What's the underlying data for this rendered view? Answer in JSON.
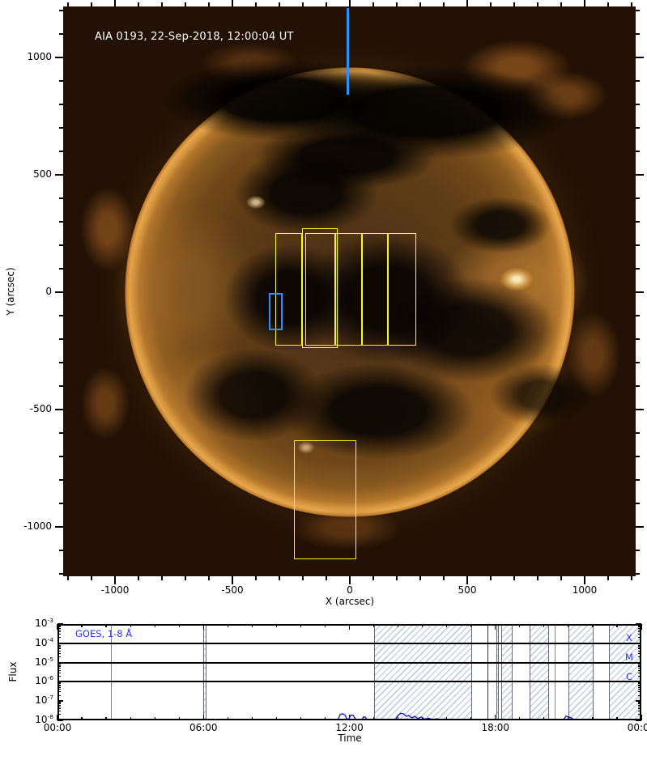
{
  "colors": {
    "fov_yellow": "#ffff00",
    "marker_blue": "#2f8fff",
    "goes_curve": "#2222bb",
    "goes_text_blue": "#2b36e0",
    "hatch_blue": "#7898cd",
    "event_line_gray": "#888888",
    "event_line_dark": "#333333"
  },
  "chart_data": [
    {
      "type": "heatmap",
      "title": "AIA 0193, 22-Sep-2018, 12:00:04 UT",
      "xlabel": "X (arcsec)",
      "ylabel": "Y (arcsec)",
      "xlim": [
        -1220.7,
        1217.2
      ],
      "ylim": [
        -1210.3,
        1217.2
      ],
      "xticks": [
        {
          "v": -1000,
          "label": "-1000"
        },
        {
          "v": -500,
          "label": "-500"
        },
        {
          "v": 0,
          "label": "0"
        },
        {
          "v": 500,
          "label": "500"
        },
        {
          "v": 1000,
          "label": "1000"
        }
      ],
      "yticks": [
        {
          "v": 1000,
          "label": "1000"
        },
        {
          "v": 500,
          "label": "500"
        },
        {
          "v": 0,
          "label": "0"
        },
        {
          "v": -500,
          "label": "-500"
        },
        {
          "v": -1000,
          "label": "-1000"
        }
      ],
      "minor_step": 100,
      "grid": false,
      "sun_radius_arcsec": 960,
      "fov_boxes_yellow_arcsec": [
        {
          "x1": -317,
          "x2": -203,
          "y1": -228,
          "y2": 252
        },
        {
          "x1": -203,
          "x2": -52,
          "y1": -238,
          "y2": 272
        },
        {
          "x1": -190,
          "x2": -62,
          "y1": -228,
          "y2": 252
        },
        {
          "x1": -62,
          "x2": 52,
          "y1": -228,
          "y2": 252
        },
        {
          "x1": 52,
          "x2": 162,
          "y1": -228,
          "y2": 252
        },
        {
          "x1": 162,
          "x2": 283,
          "y1": -228,
          "y2": 252
        },
        {
          "x1": -238,
          "x2": 28,
          "y1": -1138,
          "y2": -631
        }
      ],
      "fov_box_blue_arcsec": {
        "x1": -345,
        "x2": -286,
        "y1": -162,
        "y2": -3
      },
      "slit_line_blue_arcsec": {
        "x": -10,
        "y1": 841,
        "y2": 1210
      }
    },
    {
      "type": "line",
      "label": "GOES, 1-8 Å",
      "xlabel": "Time",
      "ylabel": "Flux",
      "x_hours_lim": [
        0,
        24
      ],
      "xticks": [
        {
          "v": 0,
          "label": "00:00"
        },
        {
          "v": 6,
          "label": "06:00"
        },
        {
          "v": 12,
          "label": "12:00"
        },
        {
          "v": 18,
          "label": "18:00"
        },
        {
          "v": 24,
          "label": "00:00"
        }
      ],
      "minor_step_hours": 1,
      "flux_exponents": [
        -3,
        -4,
        -5,
        -6,
        -7,
        -8
      ],
      "gridline_exponents": [
        -4,
        -5,
        -6
      ],
      "class_labels": [
        {
          "label": "X",
          "flux": 0.00017
        },
        {
          "label": "M",
          "flux": 1.7e-05
        },
        {
          "label": "C",
          "flux": 1.7e-06
        }
      ],
      "hatch_bands_hours": [
        [
          6.0,
          6.13
        ],
        [
          13.0,
          17.05
        ],
        [
          18.05,
          18.15
        ],
        [
          18.24,
          18.71
        ],
        [
          19.4,
          20.2
        ],
        [
          21.0,
          22.05
        ],
        [
          22.66,
          24.0
        ]
      ],
      "event_lines_hours": [
        {
          "t": 2.2,
          "tone": "gray"
        },
        {
          "t": 17.7,
          "tone": "dark"
        },
        {
          "t": 20.44,
          "tone": "gray"
        }
      ],
      "series": [
        {
          "name": "GOES 1-8 Å flux",
          "segments": [
            [
              [
                11.52,
                1e-08
              ],
              [
                11.62,
                2e-08
              ],
              [
                11.72,
                2.2e-08
              ],
              [
                11.82,
                1.9e-08
              ],
              [
                11.9,
                1.15e-08
              ],
              [
                11.98,
                1.2e-08
              ],
              [
                12.06,
                1.9e-08
              ],
              [
                12.16,
                1.8e-08
              ],
              [
                12.26,
                1.1e-08
              ],
              [
                12.32,
                1e-08
              ]
            ],
            [
              [
                12.5,
                1e-08
              ],
              [
                12.58,
                1.5e-08
              ],
              [
                12.66,
                1.45e-08
              ],
              [
                12.74,
                1e-08
              ]
            ],
            [
              [
                13.88,
                1e-08
              ],
              [
                13.98,
                1.7e-08
              ],
              [
                14.1,
                2.3e-08
              ],
              [
                14.22,
                2.2e-08
              ],
              [
                14.34,
                1.6e-08
              ],
              [
                14.44,
                1.8e-08
              ],
              [
                14.56,
                1.35e-08
              ],
              [
                14.68,
                1.6e-08
              ],
              [
                14.82,
                1.25e-08
              ],
              [
                14.95,
                1.5e-08
              ],
              [
                15.1,
                1.15e-08
              ],
              [
                15.25,
                1.3e-08
              ],
              [
                15.42,
                1.1e-08
              ],
              [
                15.6,
                1.2e-08
              ],
              [
                15.78,
                1.05e-08
              ],
              [
                15.95,
                1.15e-08
              ],
              [
                16.15,
                1e-08
              ],
              [
                16.35,
                1.05e-08
              ],
              [
                16.55,
                1e-08
              ]
            ],
            [
              [
                16.75,
                1e-08
              ],
              [
                16.85,
                1.1e-08
              ],
              [
                16.95,
                1e-08
              ]
            ],
            [
              [
                20.78,
                1e-08
              ],
              [
                20.9,
                1.65e-08
              ],
              [
                21.0,
                1.5e-08
              ],
              [
                21.12,
                1.35e-08
              ],
              [
                21.25,
                1e-08
              ]
            ]
          ]
        }
      ]
    }
  ]
}
